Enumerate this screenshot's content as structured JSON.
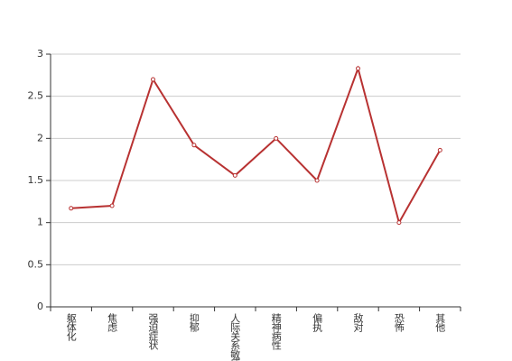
{
  "chart_data": {
    "type": "line",
    "categories": [
      "躯体化",
      "焦虑",
      "强迫症状",
      "抑郁",
      "人际关系敏感",
      "精神病性",
      "偏执",
      "敌对",
      "恐怖",
      "其他"
    ],
    "values": [
      1.17,
      1.2,
      2.7,
      1.92,
      1.56,
      2.0,
      1.5,
      2.83,
      1.0,
      1.86
    ],
    "color": "#b83232",
    "ylim": [
      0,
      3
    ],
    "yticks": [
      0,
      0.5,
      1,
      1.5,
      2,
      2.5,
      3
    ],
    "grid": true
  }
}
